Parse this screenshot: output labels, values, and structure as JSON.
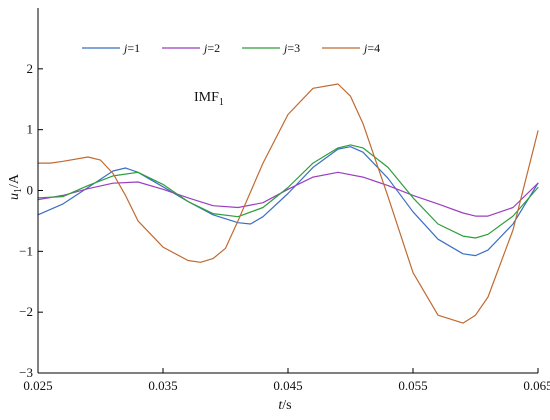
{
  "chart_data": {
    "type": "line",
    "annotation": "IMF",
    "annotation_sub": "1",
    "xlabel": "t",
    "xlabel_unit": "/s",
    "ylabel": "u",
    "ylabel_sub": "1",
    "ylabel_unit": "/A",
    "xlim": [
      0.025,
      0.065
    ],
    "ylim": [
      -3,
      3
    ],
    "xticks": [
      0.025,
      0.035,
      0.045,
      0.055,
      0.065
    ],
    "xtick_labels": [
      "0.025",
      "0.035",
      "0.045",
      "0.055",
      "0.065"
    ],
    "yticks": [
      -3,
      -2,
      -1,
      0,
      1,
      2
    ],
    "ytick_labels": [
      "−3",
      "−2",
      "−1",
      "0",
      "1",
      "2"
    ],
    "grid": false,
    "legend_position": "top-left",
    "series": [
      {
        "name": "j=1",
        "name_var": "j",
        "name_rest": "=1",
        "color": "#3b6fc4",
        "x": [
          0.025,
          0.027,
          0.029,
          0.031,
          0.032,
          0.033,
          0.035,
          0.037,
          0.039,
          0.041,
          0.042,
          0.043,
          0.045,
          0.047,
          0.049,
          0.05,
          0.051,
          0.053,
          0.055,
          0.057,
          0.059,
          0.06,
          0.061,
          0.063,
          0.065
        ],
        "y": [
          -0.4,
          -0.22,
          0.05,
          0.32,
          0.37,
          0.3,
          0.06,
          -0.18,
          -0.4,
          -0.53,
          -0.55,
          -0.43,
          -0.05,
          0.38,
          0.68,
          0.72,
          0.63,
          0.2,
          -0.35,
          -0.8,
          -1.04,
          -1.07,
          -0.98,
          -0.55,
          0.12
        ]
      },
      {
        "name": "j=2",
        "name_var": "j",
        "name_rest": "=2",
        "color": "#9b3fc0",
        "x": [
          0.025,
          0.027,
          0.029,
          0.031,
          0.033,
          0.035,
          0.037,
          0.039,
          0.041,
          0.043,
          0.045,
          0.047,
          0.049,
          0.051,
          0.053,
          0.055,
          0.057,
          0.059,
          0.06,
          0.061,
          0.063,
          0.065
        ],
        "y": [
          -0.15,
          -0.08,
          0.03,
          0.12,
          0.14,
          0.02,
          -0.12,
          -0.25,
          -0.28,
          -0.2,
          0.02,
          0.22,
          0.3,
          0.22,
          0.08,
          -0.08,
          -0.22,
          -0.37,
          -0.42,
          -0.42,
          -0.28,
          0.12
        ]
      },
      {
        "name": "j=3",
        "name_var": "j",
        "name_rest": "=3",
        "color": "#2e9e3a",
        "x": [
          0.025,
          0.027,
          0.029,
          0.031,
          0.033,
          0.035,
          0.037,
          0.039,
          0.041,
          0.043,
          0.045,
          0.047,
          0.049,
          0.05,
          0.051,
          0.053,
          0.055,
          0.057,
          0.059,
          0.06,
          0.061,
          0.063,
          0.065
        ],
        "y": [
          -0.12,
          -0.1,
          0.08,
          0.24,
          0.3,
          0.1,
          -0.18,
          -0.38,
          -0.43,
          -0.28,
          0.05,
          0.45,
          0.7,
          0.75,
          0.7,
          0.38,
          -0.12,
          -0.55,
          -0.75,
          -0.78,
          -0.72,
          -0.42,
          0.05
        ]
      },
      {
        "name": "j=4",
        "name_var": "j",
        "name_rest": "=4",
        "color": "#c06a32",
        "x": [
          0.025,
          0.026,
          0.027,
          0.029,
          0.03,
          0.031,
          0.032,
          0.033,
          0.035,
          0.037,
          0.038,
          0.039,
          0.04,
          0.041,
          0.043,
          0.045,
          0.047,
          0.049,
          0.05,
          0.051,
          0.053,
          0.055,
          0.057,
          0.059,
          0.06,
          0.061,
          0.063,
          0.065
        ],
        "y": [
          0.45,
          0.45,
          0.48,
          0.55,
          0.5,
          0.28,
          -0.08,
          -0.5,
          -0.93,
          -1.15,
          -1.18,
          -1.12,
          -0.95,
          -0.5,
          0.45,
          1.25,
          1.68,
          1.75,
          1.55,
          1.1,
          -0.1,
          -1.35,
          -2.05,
          -2.18,
          -2.05,
          -1.75,
          -0.65,
          0.98
        ]
      }
    ]
  }
}
